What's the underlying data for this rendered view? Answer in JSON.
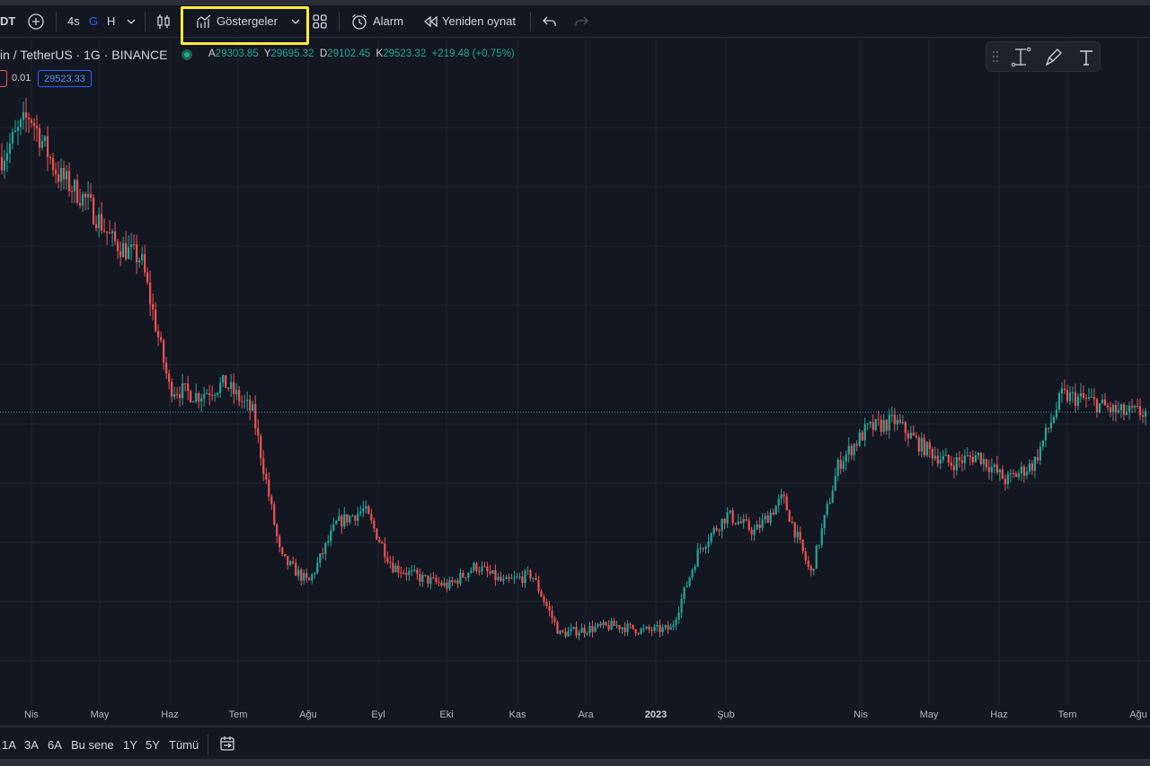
{
  "toolbar": {
    "symbol_short": "DT",
    "intervals": [
      "4s",
      "G",
      "H"
    ],
    "active_interval": "G",
    "indicators_label": "Göstergeler",
    "alarm_label": "Alarm",
    "replay_label": "Yeniden oynat",
    "icons": [
      "plus-circle-icon",
      "chevron-down-icon",
      "candles-icon",
      "indicators-icon",
      "layouts-icon",
      "alarm-clock-icon",
      "replay-icon",
      "undo-icon",
      "redo-icon"
    ]
  },
  "legend": {
    "title": "in / TetherUS · 1G · BINANCE",
    "open_label": "A",
    "open": "29303.85",
    "high_label": "Y",
    "high": "29695.32",
    "low_label": "D",
    "low": "29102.45",
    "close_label": "K",
    "close": "29523.32",
    "change": "+219.48 (+0.75%)",
    "spread": "0.01",
    "buy_price": "29523.33"
  },
  "drawing_toolbar": {
    "icons": [
      "drag-handle-icon",
      "trend-line-icon",
      "brush-icon",
      "text-icon"
    ]
  },
  "colors": {
    "background": "#131722",
    "up": "#26a69a",
    "down": "#ef5350",
    "highlight": "#ffeb3b",
    "grid": "#1f2330",
    "accent": "#2962ff"
  },
  "chart_data": {
    "type": "candlestick",
    "x_labels": [
      "Nis",
      "May",
      "Haz",
      "Tem",
      "Ağu",
      "Eyl",
      "Eki",
      "Kas",
      "Ara",
      "2023",
      "Şub",
      "Nis",
      "May",
      "Haz",
      "Tem",
      "Ağu"
    ],
    "trend_close": [
      44500,
      47000,
      43500,
      42000,
      39500,
      38500,
      31000,
      30500,
      31200,
      29500,
      21000,
      19500,
      23000,
      23800,
      20500,
      19800,
      19300,
      20500,
      19500,
      20000,
      16500,
      16800,
      17000,
      16700,
      16800,
      21500,
      23500,
      22500,
      24500,
      20000,
      26500,
      28500,
      29000,
      27500,
      26500,
      27000,
      25500,
      26500,
      30500,
      30200,
      29500,
      29500
    ],
    "last_price": "29523.32"
  },
  "bottom": {
    "ranges": [
      "1A",
      "3A",
      "6A",
      "Bu sene",
      "1Y",
      "5Y",
      "Tümü"
    ],
    "icons": [
      "date-range-icon"
    ]
  }
}
